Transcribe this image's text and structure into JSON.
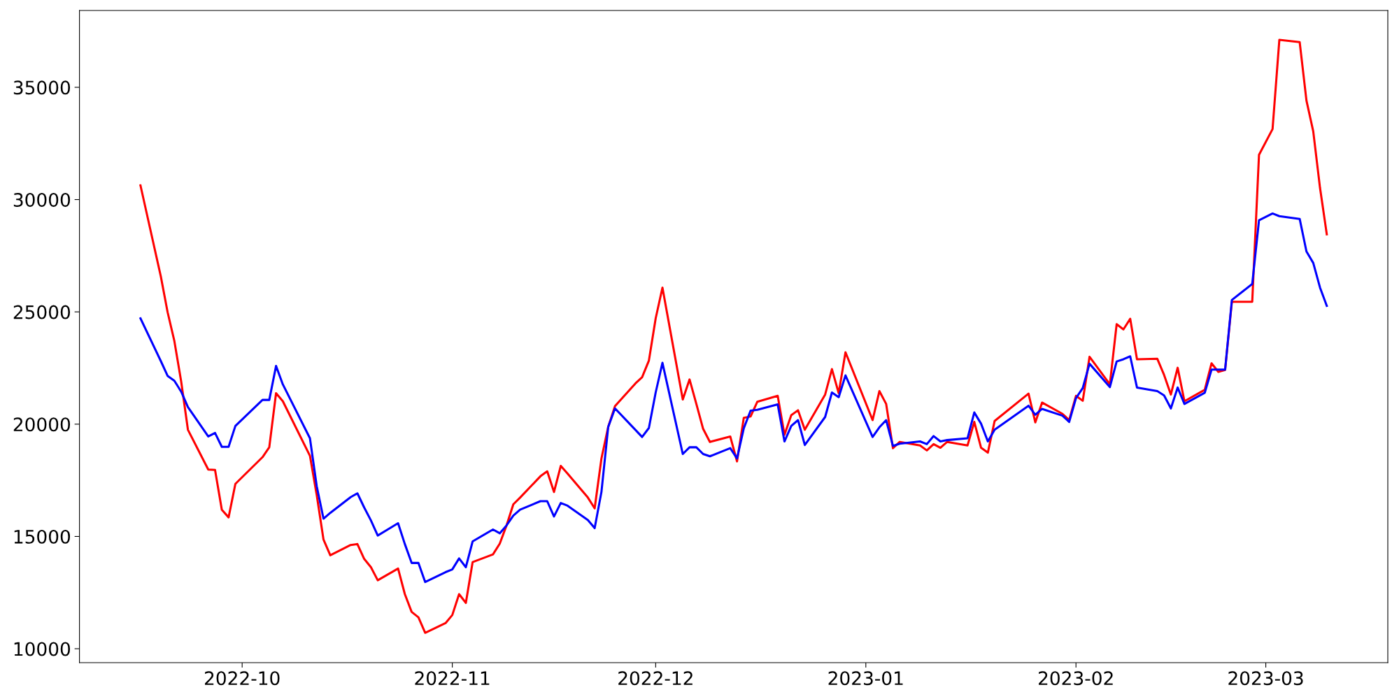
{
  "chart_data": {
    "type": "line",
    "x": [
      "2022-09-16",
      "2022-09-19",
      "2022-09-20",
      "2022-09-21",
      "2022-09-22",
      "2022-09-23",
      "2022-09-26",
      "2022-09-27",
      "2022-09-28",
      "2022-09-29",
      "2022-09-30",
      "2022-10-04",
      "2022-10-05",
      "2022-10-06",
      "2022-10-07",
      "2022-10-11",
      "2022-10-12",
      "2022-10-13",
      "2022-10-14",
      "2022-10-17",
      "2022-10-18",
      "2022-10-19",
      "2022-10-20",
      "2022-10-21",
      "2022-10-24",
      "2022-10-25",
      "2022-10-26",
      "2022-10-27",
      "2022-10-28",
      "2022-10-31",
      "2022-11-01",
      "2022-11-02",
      "2022-11-03",
      "2022-11-04",
      "2022-11-07",
      "2022-11-08",
      "2022-11-09",
      "2022-11-10",
      "2022-11-11",
      "2022-11-14",
      "2022-11-15",
      "2022-11-16",
      "2022-11-17",
      "2022-11-18",
      "2022-11-21",
      "2022-11-22",
      "2022-11-23",
      "2022-11-24",
      "2022-11-25",
      "2022-11-28",
      "2022-11-29",
      "2022-11-30",
      "2022-12-01",
      "2022-12-02",
      "2022-12-05",
      "2022-12-06",
      "2022-12-07",
      "2022-12-08",
      "2022-12-09",
      "2022-12-12",
      "2022-12-13",
      "2022-12-14",
      "2022-12-15",
      "2022-12-16",
      "2022-12-19",
      "2022-12-20",
      "2022-12-21",
      "2022-12-22",
      "2022-12-23",
      "2022-12-26",
      "2022-12-27",
      "2022-12-28",
      "2022-12-29",
      "2023-01-02",
      "2023-01-03",
      "2023-01-04",
      "2023-01-05",
      "2023-01-06",
      "2023-01-09",
      "2023-01-10",
      "2023-01-11",
      "2023-01-12",
      "2023-01-13",
      "2023-01-16",
      "2023-01-17",
      "2023-01-18",
      "2023-01-19",
      "2023-01-20",
      "2023-01-25",
      "2023-01-26",
      "2023-01-27",
      "2023-01-30",
      "2023-01-31",
      "2023-02-01",
      "2023-02-02",
      "2023-02-03",
      "2023-02-06",
      "2023-02-07",
      "2023-02-08",
      "2023-02-09",
      "2023-02-10",
      "2023-02-13",
      "2023-02-14",
      "2023-02-15",
      "2023-02-16",
      "2023-02-17",
      "2023-02-20",
      "2023-02-21",
      "2023-02-22",
      "2023-02-23",
      "2023-02-24",
      "2023-02-27",
      "2023-02-28",
      "2023-03-02",
      "2023-03-03",
      "2023-03-06",
      "2023-03-07",
      "2023-03-08",
      "2023-03-09",
      "2023-03-10"
    ],
    "series": [
      {
        "color": "#ff0000",
        "values": [
          30630,
          26580,
          24990,
          23700,
          21910,
          19750,
          17980,
          17960,
          16190,
          15850,
          17340,
          18530,
          18970,
          21380,
          21020,
          18590,
          16840,
          14860,
          14160,
          14620,
          14660,
          14000,
          13630,
          13050,
          13570,
          12430,
          11640,
          11400,
          10710,
          11140,
          11500,
          12430,
          12040,
          13860,
          14200,
          14680,
          15490,
          16430,
          16730,
          17680,
          17900,
          16980,
          18140,
          17800,
          16730,
          16250,
          18470,
          19880,
          20800,
          21810,
          22090,
          22830,
          24710,
          26080,
          21100,
          21990,
          20900,
          19790,
          19210,
          19450,
          18340,
          20280,
          20340,
          21000,
          21260,
          19530,
          20400,
          20620,
          19750,
          21320,
          22450,
          21380,
          23200,
          20180,
          21470,
          20900,
          18930,
          19210,
          19050,
          18830,
          19110,
          18950,
          19210,
          19050,
          20100,
          18950,
          18730,
          20140,
          21360,
          20080,
          20960,
          20460,
          20180,
          21260,
          21040,
          23000,
          21770,
          24450,
          24220,
          24690,
          22890,
          22910,
          22190,
          21320,
          22510,
          21020,
          21530,
          22710,
          22330,
          22410,
          25450,
          25450,
          31990,
          33140,
          37110,
          37010,
          34410,
          33040,
          30520,
          28450
        ]
      },
      {
        "color": "#0000ff",
        "values": [
          24710,
          22810,
          22150,
          21930,
          21450,
          20760,
          19450,
          19610,
          18990,
          18990,
          19920,
          21080,
          21080,
          22590,
          21770,
          19370,
          17240,
          15790,
          16050,
          16750,
          16920,
          16290,
          15710,
          15040,
          15590,
          14660,
          13820,
          13820,
          12970,
          13410,
          13530,
          14020,
          13630,
          14780,
          15310,
          15140,
          15490,
          15930,
          16190,
          16570,
          16570,
          15890,
          16490,
          16370,
          15730,
          15370,
          16980,
          19880,
          20700,
          19750,
          19430,
          19830,
          21410,
          22730,
          18670,
          18970,
          18970,
          18670,
          18570,
          18930,
          18470,
          19820,
          20600,
          20640,
          20880,
          19230,
          19920,
          20180,
          19070,
          20320,
          21410,
          21200,
          22170,
          19430,
          19860,
          20180,
          19030,
          19130,
          19230,
          19110,
          19470,
          19230,
          19290,
          19370,
          20520,
          20020,
          19230,
          19750,
          20820,
          20420,
          20680,
          20380,
          20100,
          21160,
          21610,
          22690,
          21650,
          22790,
          22890,
          23020,
          21630,
          21470,
          21280,
          20700,
          21630,
          20900,
          21400,
          22430,
          22430,
          22430,
          25530,
          26240,
          29080,
          29380,
          29260,
          29140,
          27690,
          27180,
          26080,
          25270
        ]
      }
    ],
    "xlim": [
      "2022-09-07",
      "2023-03-19"
    ],
    "xticks": [
      "2022-10",
      "2022-11",
      "2022-12",
      "2023-01",
      "2023-02",
      "2023-03"
    ],
    "ylim": [
      9380,
      38420
    ],
    "yticks": [
      10000,
      15000,
      20000,
      25000,
      30000,
      35000
    ],
    "grid": false
  }
}
